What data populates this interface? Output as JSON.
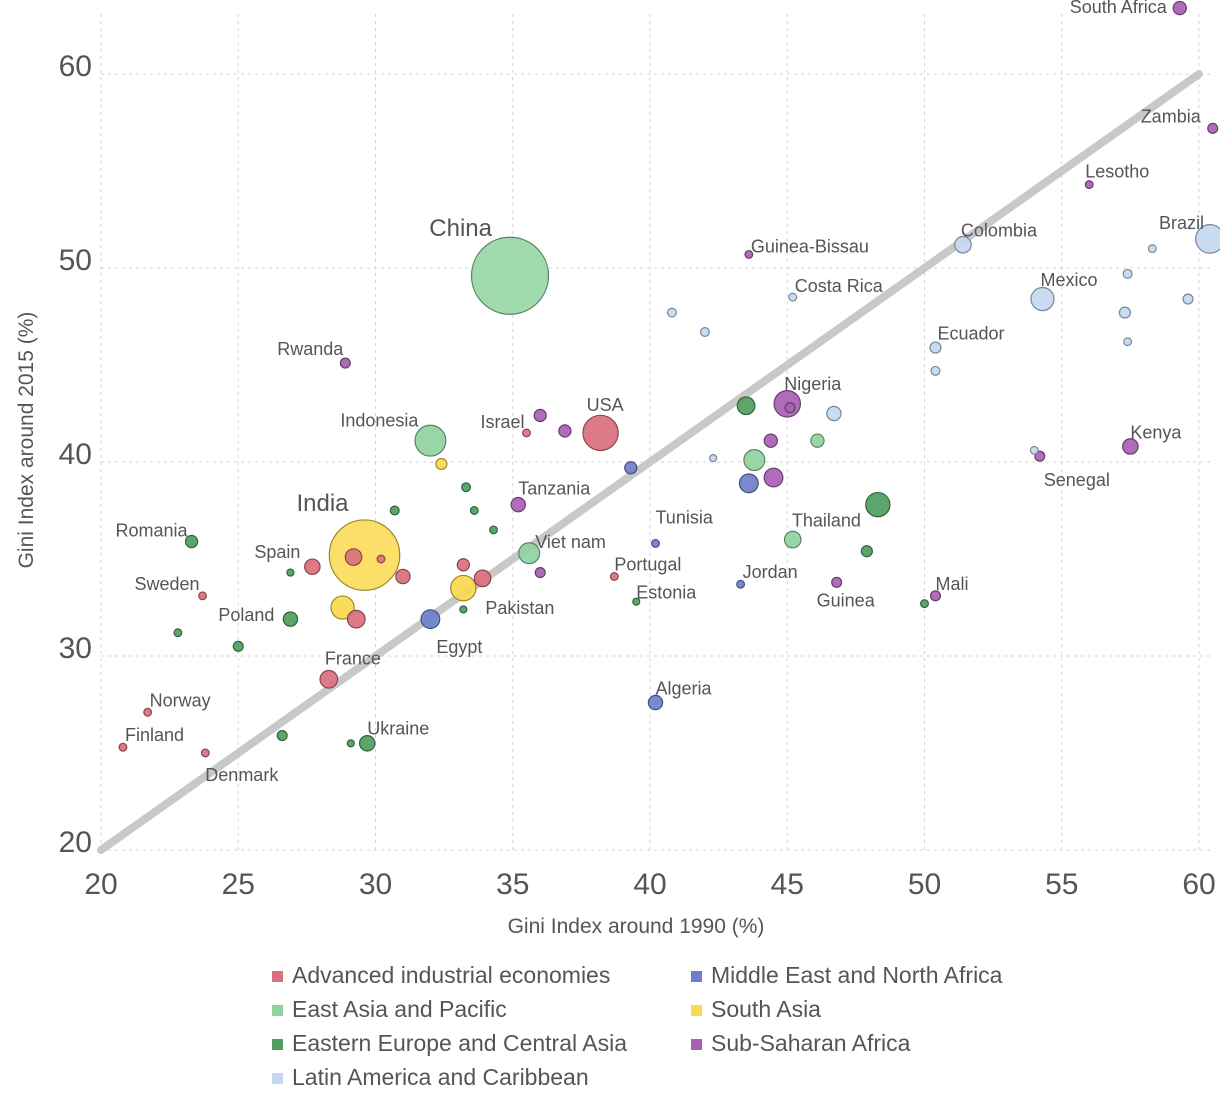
{
  "chart_data": {
    "type": "scatter",
    "title": "",
    "xlabel": "Gini Index around 1990 (%)",
    "ylabel": "Gini Index around 2015 (%)",
    "xlim": [
      20,
      60
    ],
    "ylim": [
      20,
      60
    ],
    "xticks": [
      20,
      25,
      30,
      35,
      40,
      45,
      50,
      55,
      60
    ],
    "yticks": [
      20,
      30,
      40,
      50,
      60
    ],
    "grid": true,
    "reference_line": {
      "from": [
        20,
        20
      ],
      "to": [
        60,
        60
      ],
      "color": "#c8c8c8"
    },
    "legend_position": "bottom",
    "groups": [
      {
        "key": "adv",
        "name": "Advanced industrial economies",
        "color": "#d9707d"
      },
      {
        "key": "eap",
        "name": "East Asia and Pacific",
        "color": "#8fd39f"
      },
      {
        "key": "eeca",
        "name": "Eastern Europe and Central Asia",
        "color": "#4f9e5e"
      },
      {
        "key": "lac",
        "name": "Latin America and Caribbean",
        "color": "#c3d8ef"
      },
      {
        "key": "mena",
        "name": "Middle East and North Africa",
        "color": "#6c7fc9"
      },
      {
        "key": "sa",
        "name": "South Asia",
        "color": "#fad94e"
      },
      {
        "key": "ssa",
        "name": "Sub-Saharan Africa",
        "color": "#a860b2"
      }
    ],
    "points": [
      {
        "label": "South Africa",
        "x": 59.3,
        "y": 63.4,
        "group": "ssa",
        "size": 1.2
      },
      {
        "label": "Zambia",
        "x": 60.5,
        "y": 57.2,
        "group": "ssa",
        "size": 0.9
      },
      {
        "label": "Lesotho",
        "x": 56.0,
        "y": 54.3,
        "group": "ssa",
        "size": 0.7
      },
      {
        "label": "Brazil",
        "x": 60.4,
        "y": 51.5,
        "group": "lac",
        "size": 2.6
      },
      {
        "label": "Colombia",
        "x": 51.4,
        "y": 51.2,
        "group": "lac",
        "size": 1.5
      },
      {
        "label": "Mexico",
        "x": 54.3,
        "y": 48.4,
        "group": "lac",
        "size": 2.1
      },
      {
        "label": "Guinea-Bissau",
        "x": 43.6,
        "y": 50.7,
        "group": "ssa",
        "size": 0.7
      },
      {
        "label": "Costa Rica",
        "x": 45.2,
        "y": 48.5,
        "group": "lac",
        "size": 0.7
      },
      {
        "label": "Ecuador",
        "x": 50.4,
        "y": 45.9,
        "group": "lac",
        "size": 1.0
      },
      {
        "label": "China",
        "x": 34.9,
        "y": 49.6,
        "group": "eap",
        "size": 7.0
      },
      {
        "label": "Rwanda",
        "x": 28.9,
        "y": 45.1,
        "group": "ssa",
        "size": 0.9
      },
      {
        "label": "Nigeria",
        "x": 45.0,
        "y": 43.0,
        "group": "ssa",
        "size": 2.4
      },
      {
        "label": "USA",
        "x": 38.2,
        "y": 41.5,
        "group": "adv",
        "size": 3.2
      },
      {
        "label": "Israel",
        "x": 35.5,
        "y": 41.5,
        "group": "adv",
        "size": 0.7
      },
      {
        "label": "Indonesia",
        "x": 32.0,
        "y": 41.1,
        "group": "eap",
        "size": 2.8
      },
      {
        "label": "Kenya",
        "x": 57.5,
        "y": 40.8,
        "group": "ssa",
        "size": 1.4
      },
      {
        "label": "Senegal",
        "x": 54.2,
        "y": 40.3,
        "group": "ssa",
        "size": 0.9
      },
      {
        "label": "Tanzania",
        "x": 35.2,
        "y": 37.8,
        "group": "ssa",
        "size": 1.3
      },
      {
        "label": "Thailand",
        "x": 48.3,
        "y": 37.8,
        "group": "eeca",
        "size": 2.2
      },
      {
        "label": "India",
        "x": 29.6,
        "y": 35.2,
        "group": "sa",
        "size": 6.4
      },
      {
        "label": "Romania",
        "x": 23.3,
        "y": 35.9,
        "group": "eeca",
        "size": 1.1
      },
      {
        "label": "Spain",
        "x": 27.7,
        "y": 34.6,
        "group": "adv",
        "size": 1.4
      },
      {
        "label": "Viet nam",
        "x": 35.6,
        "y": 35.3,
        "group": "eap",
        "size": 1.9
      },
      {
        "label": "Tunisia",
        "x": 40.2,
        "y": 35.8,
        "group": "mena",
        "size": 0.7
      },
      {
        "label": "Portugal",
        "x": 38.7,
        "y": 34.1,
        "group": "adv",
        "size": 0.7
      },
      {
        "label": "Estonia",
        "x": 39.5,
        "y": 32.8,
        "group": "eeca",
        "size": 0.6
      },
      {
        "label": "Jordan",
        "x": 43.3,
        "y": 33.7,
        "group": "mena",
        "size": 0.7
      },
      {
        "label": "Guinea",
        "x": 46.8,
        "y": 33.8,
        "group": "ssa",
        "size": 0.9
      },
      {
        "label": "Mali",
        "x": 50.4,
        "y": 33.1,
        "group": "ssa",
        "size": 0.9
      },
      {
        "label": "Sweden",
        "x": 23.7,
        "y": 33.1,
        "group": "adv",
        "size": 0.7
      },
      {
        "label": "Pakistan",
        "x": 33.2,
        "y": 33.5,
        "group": "sa",
        "size": 2.3
      },
      {
        "label": "Poland",
        "x": 26.9,
        "y": 31.9,
        "group": "eeca",
        "size": 1.3
      },
      {
        "label": "Egypt",
        "x": 32.0,
        "y": 31.9,
        "group": "mena",
        "size": 1.7
      },
      {
        "label": "France",
        "x": 28.3,
        "y": 28.8,
        "group": "adv",
        "size": 1.6
      },
      {
        "label": "Algeria",
        "x": 40.2,
        "y": 27.6,
        "group": "mena",
        "size": 1.3
      },
      {
        "label": "Norway",
        "x": 21.7,
        "y": 27.1,
        "group": "adv",
        "size": 0.7
      },
      {
        "label": "Ukraine",
        "x": 29.7,
        "y": 25.5,
        "group": "eeca",
        "size": 1.4
      },
      {
        "label": "Finland",
        "x": 20.8,
        "y": 25.3,
        "group": "adv",
        "size": 0.7
      },
      {
        "label": "Denmark",
        "x": 23.8,
        "y": 25.0,
        "group": "adv",
        "size": 0.7
      },
      {
        "label": "",
        "x": 57.4,
        "y": 49.7,
        "group": "lac",
        "size": 0.8
      },
      {
        "label": "",
        "x": 58.3,
        "y": 51.0,
        "group": "lac",
        "size": 0.7
      },
      {
        "label": "",
        "x": 57.3,
        "y": 47.7,
        "group": "lac",
        "size": 1.0
      },
      {
        "label": "",
        "x": 59.6,
        "y": 48.4,
        "group": "lac",
        "size": 0.9
      },
      {
        "label": "",
        "x": 57.4,
        "y": 46.2,
        "group": "lac",
        "size": 0.7
      },
      {
        "label": "",
        "x": 50.4,
        "y": 44.7,
        "group": "lac",
        "size": 0.8
      },
      {
        "label": "",
        "x": 40.8,
        "y": 47.7,
        "group": "lac",
        "size": 0.8
      },
      {
        "label": "",
        "x": 42.0,
        "y": 46.7,
        "group": "lac",
        "size": 0.8
      },
      {
        "label": "",
        "x": 46.7,
        "y": 42.5,
        "group": "lac",
        "size": 1.3
      },
      {
        "label": "",
        "x": 42.3,
        "y": 40.2,
        "group": "lac",
        "size": 0.6
      },
      {
        "label": "",
        "x": 54.0,
        "y": 40.6,
        "group": "lac",
        "size": 0.7
      },
      {
        "label": "",
        "x": 36.0,
        "y": 42.4,
        "group": "ssa",
        "size": 1.1
      },
      {
        "label": "",
        "x": 36.9,
        "y": 41.6,
        "group": "ssa",
        "size": 1.1
      },
      {
        "label": "",
        "x": 45.1,
        "y": 42.8,
        "group": "ssa",
        "size": 0.9
      },
      {
        "label": "",
        "x": 44.4,
        "y": 41.1,
        "group": "ssa",
        "size": 1.2
      },
      {
        "label": "",
        "x": 44.5,
        "y": 39.2,
        "group": "ssa",
        "size": 1.7
      },
      {
        "label": "",
        "x": 36.0,
        "y": 34.3,
        "group": "ssa",
        "size": 0.9
      },
      {
        "label": "",
        "x": 43.5,
        "y": 42.9,
        "group": "eeca",
        "size": 1.6
      },
      {
        "label": "",
        "x": 47.9,
        "y": 35.4,
        "group": "eeca",
        "size": 1.0
      },
      {
        "label": "",
        "x": 50.0,
        "y": 32.7,
        "group": "eeca",
        "size": 0.7
      },
      {
        "label": "",
        "x": 33.3,
        "y": 38.7,
        "group": "eeca",
        "size": 0.8
      },
      {
        "label": "",
        "x": 33.6,
        "y": 37.5,
        "group": "eeca",
        "size": 0.7
      },
      {
        "label": "",
        "x": 34.3,
        "y": 36.5,
        "group": "eeca",
        "size": 0.7
      },
      {
        "label": "",
        "x": 30.7,
        "y": 37.5,
        "group": "eeca",
        "size": 0.8
      },
      {
        "label": "",
        "x": 26.9,
        "y": 34.3,
        "group": "eeca",
        "size": 0.6
      },
      {
        "label": "",
        "x": 22.8,
        "y": 31.2,
        "group": "eeca",
        "size": 0.7
      },
      {
        "label": "",
        "x": 25.0,
        "y": 30.5,
        "group": "eeca",
        "size": 0.9
      },
      {
        "label": "",
        "x": 26.6,
        "y": 25.9,
        "group": "eeca",
        "size": 0.9
      },
      {
        "label": "",
        "x": 29.1,
        "y": 25.5,
        "group": "eeca",
        "size": 0.6
      },
      {
        "label": "",
        "x": 33.2,
        "y": 32.4,
        "group": "eeca",
        "size": 0.6
      },
      {
        "label": "",
        "x": 43.8,
        "y": 40.1,
        "group": "eap",
        "size": 1.9
      },
      {
        "label": "",
        "x": 46.1,
        "y": 41.1,
        "group": "eap",
        "size": 1.2
      },
      {
        "label": "",
        "x": 45.2,
        "y": 36.0,
        "group": "eap",
        "size": 1.5
      },
      {
        "label": "",
        "x": 39.3,
        "y": 39.7,
        "group": "mena",
        "size": 1.1
      },
      {
        "label": "",
        "x": 43.6,
        "y": 38.9,
        "group": "mena",
        "size": 1.7
      },
      {
        "label": "",
        "x": 32.4,
        "y": 39.9,
        "group": "sa",
        "size": 1.0
      },
      {
        "label": "",
        "x": 28.8,
        "y": 32.5,
        "group": "sa",
        "size": 2.1
      },
      {
        "label": "",
        "x": 29.2,
        "y": 35.1,
        "group": "adv",
        "size": 1.5
      },
      {
        "label": "",
        "x": 30.2,
        "y": 35.0,
        "group": "adv",
        "size": 0.7
      },
      {
        "label": "",
        "x": 31.0,
        "y": 34.1,
        "group": "adv",
        "size": 1.3
      },
      {
        "label": "",
        "x": 29.3,
        "y": 31.9,
        "group": "adv",
        "size": 1.6
      },
      {
        "label": "",
        "x": 33.2,
        "y": 34.7,
        "group": "adv",
        "size": 1.1
      },
      {
        "label": "",
        "x": 33.9,
        "y": 34.0,
        "group": "adv",
        "size": 1.5
      }
    ]
  }
}
